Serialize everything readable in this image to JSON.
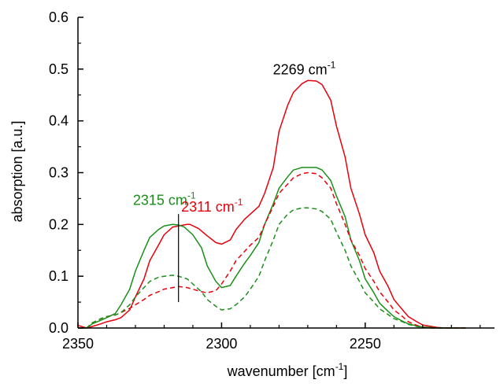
{
  "chart_data": {
    "type": "line",
    "xlabel": "wavenumber [cm",
    "xlabel_sup": "-1",
    "xlabel_end": "]",
    "ylabel": "absorption [a.u.]",
    "xlim": [
      2350,
      2205
    ],
    "ylim": [
      0.0,
      0.6
    ],
    "x_reversed": true,
    "x_ticks": [
      2350,
      2300,
      2250
    ],
    "x_tick_labels": [
      "2350",
      "2300",
      "2250"
    ],
    "y_ticks": [
      0.0,
      0.1,
      0.2,
      0.3,
      0.4,
      0.5,
      0.6
    ],
    "y_tick_labels": [
      "0.0",
      "0.1",
      "0.2",
      "0.3",
      "0.4",
      "0.5",
      "0.6"
    ],
    "grid": false,
    "series": [
      {
        "color": "#e8000b",
        "dash": "solid",
        "x": [
          2350,
          2347,
          2345,
          2342,
          2340,
          2337,
          2335,
          2332,
          2330,
          2327,
          2325,
          2322,
          2320,
          2317,
          2315,
          2312,
          2311,
          2308,
          2305,
          2302,
          2300,
          2297,
          2295,
          2292,
          2290,
          2287,
          2285,
          2282,
          2280,
          2277,
          2275,
          2272,
          2270,
          2267,
          2265,
          2262,
          2260,
          2257,
          2255,
          2252,
          2250,
          2247,
          2245,
          2242,
          2240,
          2237,
          2235,
          2232,
          2230,
          2227,
          2225,
          2222,
          2220,
          2217,
          2215
        ],
        "y": [
          0.005,
          0.0,
          0.003,
          0.008,
          0.012,
          0.016,
          0.02,
          0.035,
          0.06,
          0.095,
          0.13,
          0.16,
          0.18,
          0.195,
          0.197,
          0.2,
          0.2,
          0.192,
          0.178,
          0.165,
          0.162,
          0.17,
          0.19,
          0.21,
          0.22,
          0.235,
          0.26,
          0.31,
          0.38,
          0.43,
          0.455,
          0.472,
          0.478,
          0.477,
          0.47,
          0.44,
          0.39,
          0.33,
          0.27,
          0.22,
          0.18,
          0.145,
          0.11,
          0.08,
          0.055,
          0.035,
          0.022,
          0.012,
          0.006,
          0.003,
          0.001,
          0.0,
          0.0,
          0.0,
          0.0
        ]
      },
      {
        "color": "#1a8f1a",
        "dash": "solid",
        "x": [
          2350,
          2347,
          2345,
          2342,
          2340,
          2337,
          2335,
          2332,
          2330,
          2327,
          2325,
          2322,
          2320,
          2317,
          2315,
          2313,
          2310,
          2307,
          2305,
          2302,
          2300,
          2297,
          2295,
          2292,
          2290,
          2287,
          2285,
          2282,
          2280,
          2277,
          2275,
          2272,
          2270,
          2267,
          2265,
          2262,
          2260,
          2257,
          2255,
          2252,
          2250,
          2247,
          2245,
          2242,
          2240,
          2237,
          2235,
          2232,
          2230,
          2227,
          2225,
          2222,
          2220,
          2217,
          2215
        ],
        "y": [
          0.0,
          0.0,
          0.008,
          0.015,
          0.02,
          0.028,
          0.045,
          0.075,
          0.11,
          0.15,
          0.175,
          0.19,
          0.197,
          0.2,
          0.199,
          0.195,
          0.18,
          0.155,
          0.12,
          0.09,
          0.078,
          0.082,
          0.1,
          0.125,
          0.14,
          0.165,
          0.2,
          0.24,
          0.27,
          0.292,
          0.305,
          0.31,
          0.31,
          0.31,
          0.305,
          0.285,
          0.255,
          0.215,
          0.17,
          0.13,
          0.095,
          0.068,
          0.048,
          0.032,
          0.022,
          0.013,
          0.008,
          0.004,
          0.002,
          0.001,
          0.0,
          0.0,
          0.0,
          0.0,
          0.0
        ]
      },
      {
        "color": "#e8000b",
        "dash": "dashed",
        "x": [
          2350,
          2347,
          2345,
          2342,
          2340,
          2337,
          2335,
          2332,
          2330,
          2327,
          2325,
          2322,
          2320,
          2317,
          2315,
          2312,
          2310,
          2307,
          2305,
          2302,
          2300,
          2297,
          2295,
          2292,
          2290,
          2287,
          2285,
          2282,
          2280,
          2277,
          2275,
          2272,
          2270,
          2267,
          2265,
          2262,
          2260,
          2257,
          2255,
          2252,
          2250,
          2247,
          2245,
          2242,
          2240,
          2237,
          2235,
          2232,
          2230,
          2227,
          2225,
          2222,
          2220,
          2217,
          2215
        ],
        "y": [
          0.0,
          0.0,
          0.01,
          0.018,
          0.022,
          0.025,
          0.03,
          0.038,
          0.045,
          0.055,
          0.063,
          0.07,
          0.075,
          0.078,
          0.08,
          0.078,
          0.075,
          0.07,
          0.068,
          0.072,
          0.085,
          0.11,
          0.13,
          0.148,
          0.16,
          0.175,
          0.2,
          0.235,
          0.26,
          0.278,
          0.29,
          0.298,
          0.3,
          0.298,
          0.29,
          0.27,
          0.24,
          0.2,
          0.17,
          0.14,
          0.115,
          0.09,
          0.07,
          0.05,
          0.035,
          0.022,
          0.012,
          0.005,
          0.002,
          0.0,
          0.0,
          0.0,
          0.0,
          0.0,
          0.0
        ]
      },
      {
        "color": "#1a8f1a",
        "dash": "dashed",
        "x": [
          2350,
          2347,
          2345,
          2342,
          2340,
          2337,
          2335,
          2332,
          2330,
          2327,
          2325,
          2322,
          2320,
          2317,
          2315,
          2312,
          2310,
          2307,
          2305,
          2302,
          2300,
          2297,
          2295,
          2292,
          2290,
          2287,
          2285,
          2282,
          2280,
          2277,
          2275,
          2272,
          2270,
          2267,
          2265,
          2262,
          2260,
          2257,
          2255,
          2252,
          2250,
          2247,
          2245,
          2242,
          2240,
          2237,
          2235,
          2232,
          2230,
          2227,
          2225,
          2222,
          2220,
          2217,
          2215
        ],
        "y": [
          0.0,
          0.0,
          0.01,
          0.018,
          0.022,
          0.025,
          0.03,
          0.045,
          0.06,
          0.078,
          0.09,
          0.098,
          0.1,
          0.102,
          0.1,
          0.095,
          0.085,
          0.07,
          0.055,
          0.042,
          0.035,
          0.037,
          0.045,
          0.06,
          0.075,
          0.1,
          0.13,
          0.17,
          0.2,
          0.22,
          0.228,
          0.232,
          0.232,
          0.23,
          0.225,
          0.21,
          0.185,
          0.15,
          0.12,
          0.09,
          0.068,
          0.05,
          0.037,
          0.026,
          0.018,
          0.012,
          0.007,
          0.003,
          0.001,
          0.0,
          0.0,
          0.0,
          0.0,
          0.0,
          0.0
        ]
      }
    ],
    "annotations": [
      {
        "text": "2269 cm",
        "sup": "-1",
        "color": "#000000",
        "x": 2269,
        "y": 0.49
      },
      {
        "text": "2315 cm",
        "sup": "-1",
        "color": "#1a8f1a",
        "x": 2315,
        "y": 0.238
      },
      {
        "text": "2311 cm",
        "sup": "-1",
        "color": "#e8000b",
        "x": 2311,
        "y": 0.225
      }
    ],
    "marker_line": {
      "x": 2315,
      "y0": 0.05,
      "y1": 0.22,
      "color": "#000000"
    }
  }
}
